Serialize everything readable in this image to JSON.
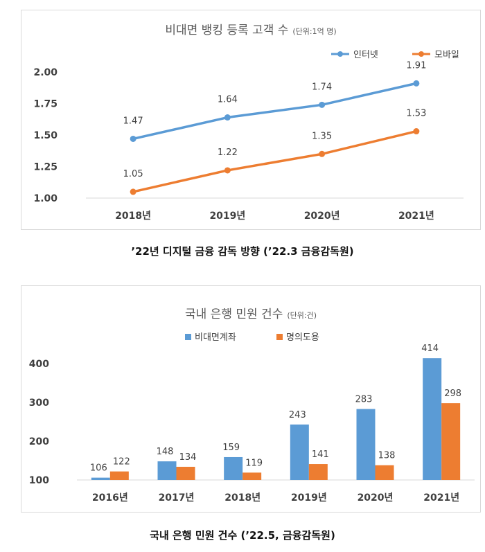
{
  "colors": {
    "internet": "#5b9bd5",
    "mobile": "#ed7d31",
    "blue": "#5b9bd5",
    "orange": "#ed7d31",
    "axis": "#d9d9d9"
  },
  "chart_data": [
    {
      "type": "line",
      "title": "비대면 뱅킹 등록 고객 수",
      "unit": "(단위:1억 명)",
      "categories": [
        "2018년",
        "2019년",
        "2020년",
        "2021년"
      ],
      "series": [
        {
          "name": "인터넷",
          "values": [
            1.47,
            1.64,
            1.74,
            1.91
          ]
        },
        {
          "name": "모바일",
          "values": [
            1.05,
            1.22,
            1.35,
            1.53
          ]
        }
      ],
      "ylim": [
        1.0,
        2.0
      ],
      "yticks": [
        "1.00",
        "1.25",
        "1.50",
        "1.75",
        "2.00"
      ],
      "legend": "top-right",
      "grid": false
    },
    {
      "type": "bar",
      "title": "국내 은행 민원 건수",
      "unit": "(단위:건)",
      "categories": [
        "2016년",
        "2017년",
        "2018년",
        "2019년",
        "2020년",
        "2021년"
      ],
      "series": [
        {
          "name": "비대면계좌",
          "values": [
            106,
            148,
            159,
            243,
            283,
            414
          ]
        },
        {
          "name": "명의도용",
          "values": [
            122,
            134,
            119,
            141,
            138,
            298
          ]
        }
      ],
      "ylim": [
        100,
        450
      ],
      "yticks": [
        "100",
        "200",
        "300",
        "400"
      ],
      "legend": "top",
      "grid": false
    }
  ],
  "captions": {
    "chart1": "’22년 디지털 금융 감독 방향 (’22.3 금융감독원)",
    "chart2": "국내 은행 민원 건수 (’22.5, 금융감독원)"
  }
}
